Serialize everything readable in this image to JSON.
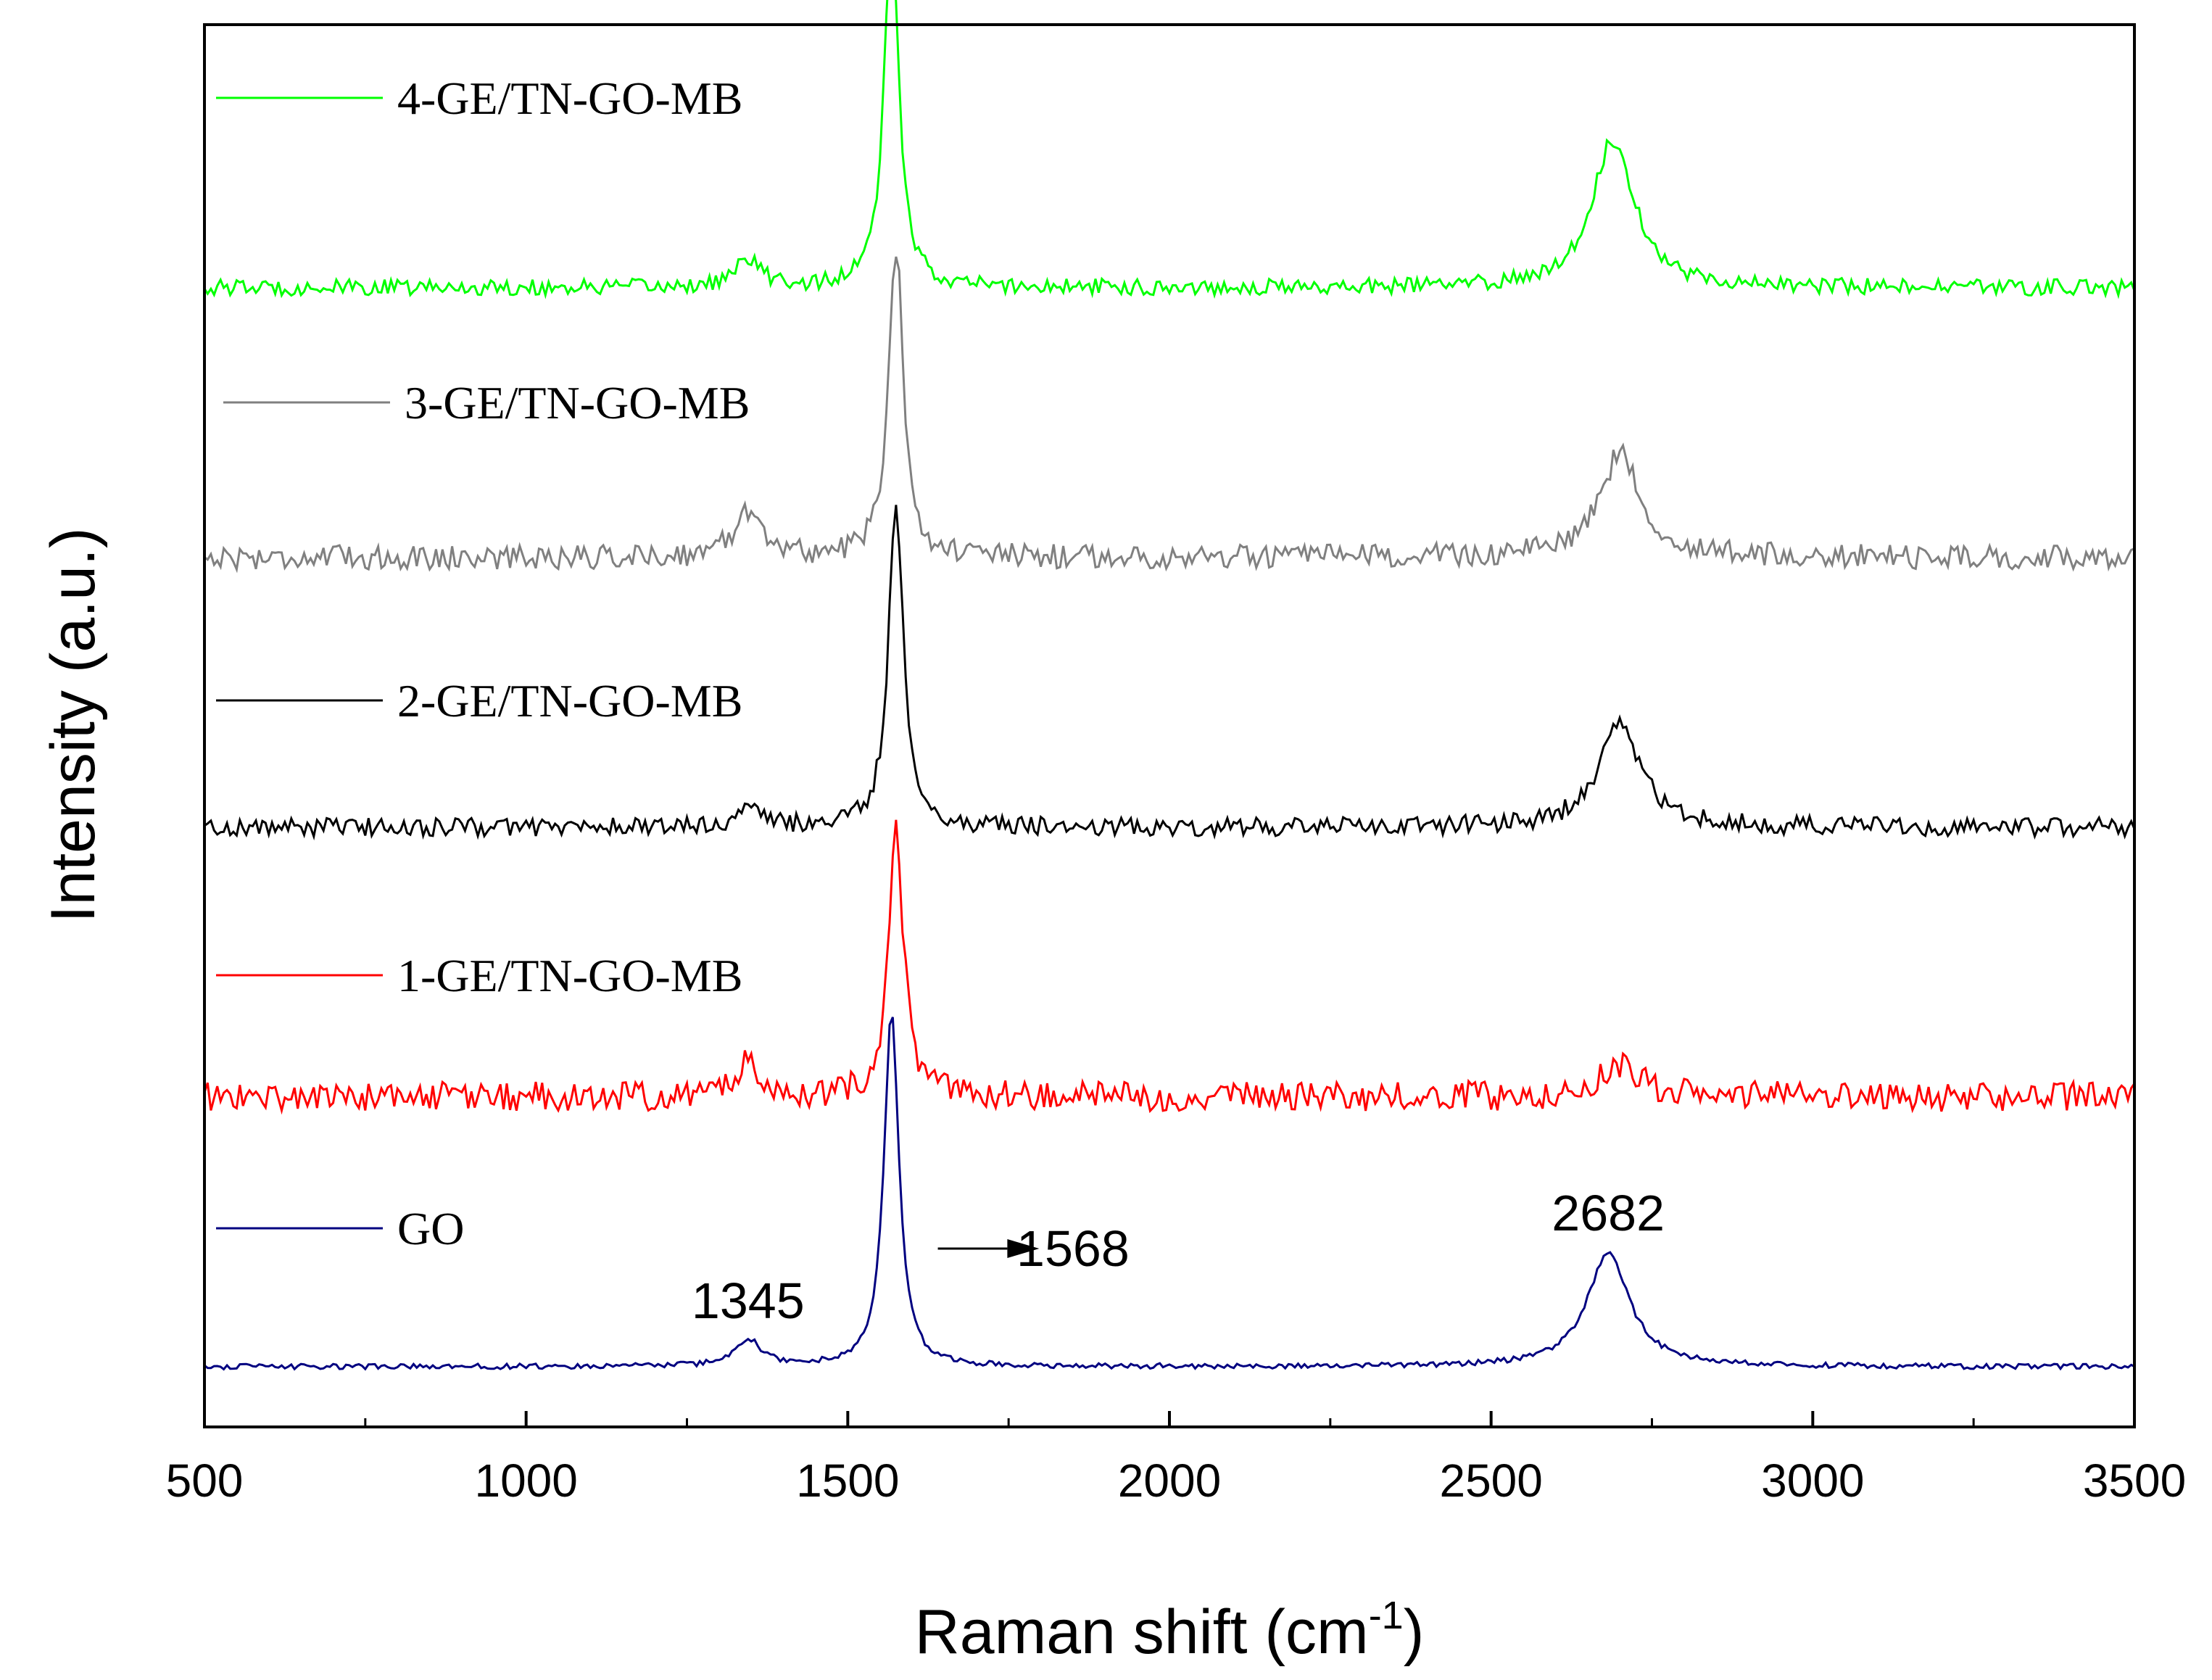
{
  "chart_data": {
    "type": "line",
    "xlabel": "Raman shift (cm",
    "xlabel_superscript": "-1",
    "xlabel_suffix": ")",
    "ylabel": "Intensity (a.u.)",
    "xlim": [
      500,
      3500
    ],
    "x_ticks": [
      "500",
      "1000",
      "1500",
      "2000",
      "2500",
      "3000",
      "3500"
    ],
    "y_ticks": [],
    "grid": false,
    "legend_position": "inline-left",
    "series": [
      {
        "name": "4-GE/TN-GO-MB",
        "color": "#00ff00",
        "offset": 4.0,
        "noise": 0.06,
        "peaks": [
          [
            1345,
            0.1,
            25
          ],
          [
            1568,
            1.3,
            14
          ],
          [
            2690,
            0.55,
            40
          ]
        ],
        "peak_markers": []
      },
      {
        "name": "3-GE/TN-GO-MB",
        "color": "#808080",
        "offset": 3.0,
        "noise": 0.09,
        "peaks": [
          [
            1345,
            0.18,
            25
          ],
          [
            1575,
            1.15,
            14
          ],
          [
            2700,
            0.38,
            40
          ]
        ],
        "peak_markers": []
      },
      {
        "name": "2-GE/TN-GO-MB",
        "color": "#000000",
        "offset": 2.0,
        "noise": 0.07,
        "peaks": [
          [
            1345,
            0.06,
            25
          ],
          [
            1575,
            1.2,
            14
          ],
          [
            2700,
            0.38,
            40
          ]
        ],
        "peak_markers": []
      },
      {
        "name": "1-GE/TN-GO-MB",
        "color": "#ff0000",
        "offset": 1.0,
        "noise": 0.11,
        "peaks": [
          [
            1345,
            0.12,
            25
          ],
          [
            1575,
            1.0,
            14
          ],
          [
            2700,
            0.12,
            40
          ]
        ],
        "peak_markers": []
      },
      {
        "name": "GO",
        "color": "#000080",
        "offset": 0.0,
        "noise": 0.02,
        "peaks": [
          [
            1345,
            0.1,
            25
          ],
          [
            1568,
            1.32,
            14
          ],
          [
            2682,
            0.42,
            40
          ]
        ],
        "peak_markers": [
          "1345",
          "1568",
          "2682"
        ]
      }
    ]
  }
}
